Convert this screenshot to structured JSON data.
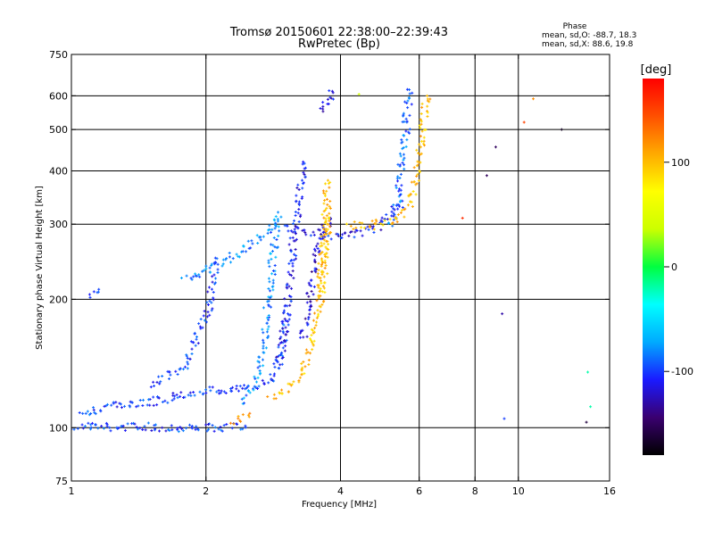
{
  "chart_data": {
    "type": "scatter",
    "title": "Tromsø 20150601 22:38:00–22:39:43",
    "subtitle": "RwPretec (Bp)",
    "xlabel": "Frequency [MHz]",
    "ylabel": "Stationary phase Virtual Height [km]",
    "x_scale": "log",
    "y_scale": "log",
    "xlim": [
      1,
      16
    ],
    "ylim": [
      75,
      750
    ],
    "grid": true,
    "x_ticks": [
      "1",
      "2",
      "4",
      "6",
      "8",
      "10",
      "16"
    ],
    "x_tick_values": [
      1,
      2,
      4,
      6,
      8,
      10,
      16
    ],
    "x_grid_values": [
      2,
      4,
      6,
      8,
      10
    ],
    "y_ticks": [
      "75",
      "100",
      "200",
      "300",
      "400",
      "500",
      "600",
      "750"
    ],
    "y_tick_values": [
      75,
      100,
      200,
      300,
      400,
      500,
      600,
      750
    ],
    "y_grid_values": [
      100,
      200,
      300,
      400,
      500,
      600
    ],
    "stats": {
      "label": "Phase",
      "line_o": "mean, sd,O: -88.7, 18.3",
      "line_x": "mean, sd,X: 88.6, 19.8"
    },
    "colorbar": {
      "label": "[deg]",
      "range": [
        -180,
        180
      ],
      "ticks": [
        "100",
        "0",
        "-100"
      ],
      "tick_values": [
        100,
        0,
        -100
      ],
      "colors": [
        "#000000",
        "#3a0070",
        "#1a1aff",
        "#00aaff",
        "#00ffff",
        "#00ff40",
        "#ccff00",
        "#ffff00",
        "#ffaa00",
        "#ff5000",
        "#ff0000"
      ]
    },
    "traces": [
      {
        "name": "",
        "phase": -100,
        "x": [
          1.0,
          1.1,
          1.25,
          1.4,
          1.55,
          1.7,
          1.9,
          2.1,
          2.3,
          2.45
        ],
        "y": [
          100,
          101,
          100,
          101,
          100,
          100,
          100,
          100,
          100,
          101
        ]
      },
      {
        "name": "",
        "phase": -100,
        "x": [
          1.05,
          1.2,
          1.35,
          1.5,
          1.65,
          1.8,
          2.0,
          2.2,
          2.4,
          2.6,
          2.8,
          2.95,
          3.05
        ],
        "y": [
          108,
          112,
          113,
          115,
          117,
          120,
          122,
          122,
          123,
          126,
          130,
          150,
          185
        ]
      },
      {
        "name": "",
        "phase": -100,
        "x": [
          1.5,
          1.6,
          1.7,
          1.8,
          1.85,
          1.9,
          1.95,
          2.0,
          2.05,
          2.08,
          2.1
        ],
        "y": [
          125,
          130,
          134,
          140,
          150,
          160,
          170,
          180,
          200,
          230,
          250
        ]
      },
      {
        "name": "",
        "phase": -80,
        "x": [
          1.8,
          2.0,
          2.2,
          2.4,
          2.6,
          2.75,
          2.9
        ],
        "y": [
          220,
          235,
          245,
          260,
          275,
          290,
          305
        ]
      },
      {
        "name": "",
        "phase": -80,
        "x": [
          2.4,
          2.55,
          2.65,
          2.7,
          2.75,
          2.8,
          2.85,
          2.9
        ],
        "y": [
          115,
          125,
          140,
          160,
          190,
          230,
          270,
          320
        ]
      },
      {
        "name": "",
        "phase": -110,
        "x": [
          2.9,
          3.0,
          3.05,
          3.1,
          3.15,
          3.2,
          3.25,
          3.3
        ],
        "y": [
          140,
          170,
          200,
          240,
          280,
          320,
          370,
          420
        ]
      },
      {
        "name": "",
        "phase": -120,
        "x": [
          3.3,
          3.4,
          3.5,
          3.6,
          3.7,
          3.8
        ],
        "y": [
          160,
          200,
          240,
          280,
          300,
          310
        ]
      },
      {
        "name": "",
        "phase": -110,
        "x": [
          3.0,
          3.3,
          3.6,
          4.0,
          4.4,
          4.8,
          5.2,
          5.5
        ],
        "y": [
          295,
          290,
          285,
          280,
          285,
          295,
          315,
          340
        ]
      },
      {
        "name": "",
        "phase": -90,
        "x": [
          5.2,
          5.35,
          5.45,
          5.55,
          5.6,
          5.65,
          5.7
        ],
        "y": [
          300,
          340,
          390,
          440,
          500,
          560,
          620
        ]
      },
      {
        "name": "",
        "phase": -120,
        "x": [
          3.6,
          3.7,
          3.75,
          3.8,
          3.85
        ],
        "y": [
          560,
          575,
          590,
          600,
          610
        ]
      },
      {
        "name": "",
        "phase": 100,
        "x": [
          2.8,
          3.0,
          3.2,
          3.4,
          3.55,
          3.65,
          3.72,
          3.78
        ],
        "y": [
          118,
          122,
          130,
          150,
          180,
          220,
          270,
          330
        ]
      },
      {
        "name": "",
        "phase": 100,
        "x": [
          3.6,
          3.65,
          3.7,
          3.72,
          3.75
        ],
        "y": [
          200,
          250,
          300,
          350,
          380
        ]
      },
      {
        "name": "",
        "phase": 100,
        "x": [
          4.2,
          4.5,
          4.8,
          5.2,
          5.6,
          5.8,
          5.95,
          6.05,
          6.15,
          6.25
        ],
        "y": [
          300,
          295,
          300,
          305,
          320,
          350,
          400,
          460,
          520,
          600
        ]
      },
      {
        "name": "",
        "phase": 110,
        "x": [
          2.3,
          2.4,
          2.5
        ],
        "y": [
          103,
          105,
          106
        ]
      },
      {
        "name": "",
        "phase": -90,
        "x": [
          1.1,
          1.15
        ],
        "y": [
          205,
          208
        ]
      }
    ],
    "isolated_points": [
      {
        "x": 8.9,
        "y": 455,
        "phase": -150
      },
      {
        "x": 9.2,
        "y": 185,
        "phase": -130
      },
      {
        "x": 9.3,
        "y": 105,
        "phase": -100
      },
      {
        "x": 10.3,
        "y": 520,
        "phase": 150
      },
      {
        "x": 10.8,
        "y": 590,
        "phase": 120
      },
      {
        "x": 12.5,
        "y": 500,
        "phase": -170
      },
      {
        "x": 14.3,
        "y": 135,
        "phase": -20
      },
      {
        "x": 14.5,
        "y": 112,
        "phase": -20
      },
      {
        "x": 14.2,
        "y": 103,
        "phase": -160
      },
      {
        "x": 7.5,
        "y": 310,
        "phase": 160
      },
      {
        "x": 4.4,
        "y": 605,
        "phase": 40
      },
      {
        "x": 8.5,
        "y": 390,
        "phase": -150
      }
    ]
  }
}
